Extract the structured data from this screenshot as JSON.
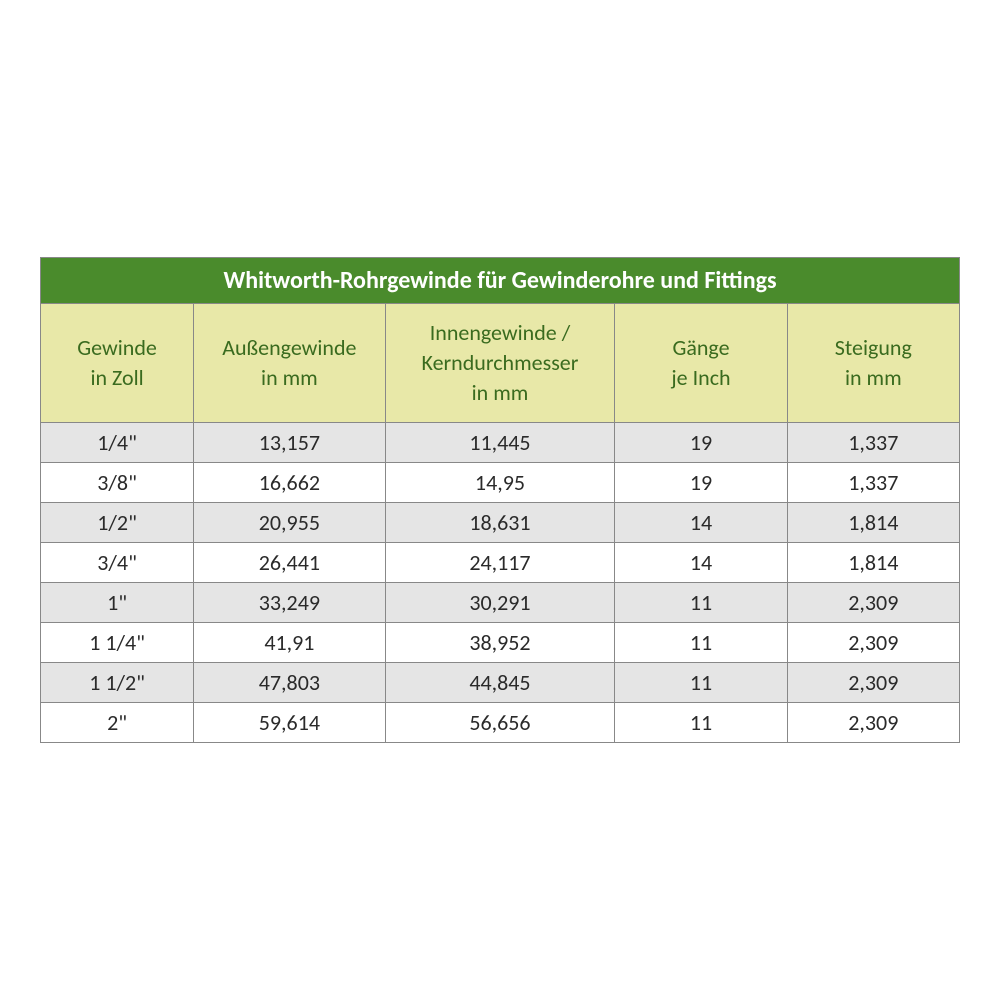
{
  "table": {
    "title": "Whitworth-Rohrgewinde für Gewinderohre und Fittings",
    "columns": [
      "Gewinde\nin Zoll",
      "Außengewinde\nin mm",
      "Innengewinde /\nKerndurchmesser\nin mm",
      "Gänge\nje Inch",
      "Steigung\nin mm"
    ],
    "rows": [
      [
        "1/4\"",
        "13,157",
        "11,445",
        "19",
        "1,337"
      ],
      [
        "3/8\"",
        "16,662",
        "14,95",
        "19",
        "1,337"
      ],
      [
        "1/2\"",
        "20,955",
        "18,631",
        "14",
        "1,814"
      ],
      [
        "3/4\"",
        "26,441",
        "24,117",
        "14",
        "1,814"
      ],
      [
        "1\"",
        "33,249",
        "30,291",
        "11",
        "2,309"
      ],
      [
        "1 1/4\"",
        "41,91",
        "38,952",
        "11",
        "2,309"
      ],
      [
        "1 1/2\"",
        "47,803",
        "44,845",
        "11",
        "2,309"
      ],
      [
        "2\"",
        "59,614",
        "56,656",
        "11",
        "2,309"
      ]
    ],
    "colors": {
      "title_bg": "#4a8b2c",
      "title_text": "#ffffff",
      "header_bg": "#e8e8a8",
      "header_text": "#3a6b1f",
      "row_odd_bg": "#e5e5e5",
      "row_even_bg": "#ffffff",
      "border": "#888888",
      "data_text": "#2a2a2a"
    },
    "font_sizes": {
      "title": 24,
      "header": 22,
      "data": 22
    },
    "column_widths_pct": [
      16,
      20,
      24,
      18,
      18
    ]
  }
}
